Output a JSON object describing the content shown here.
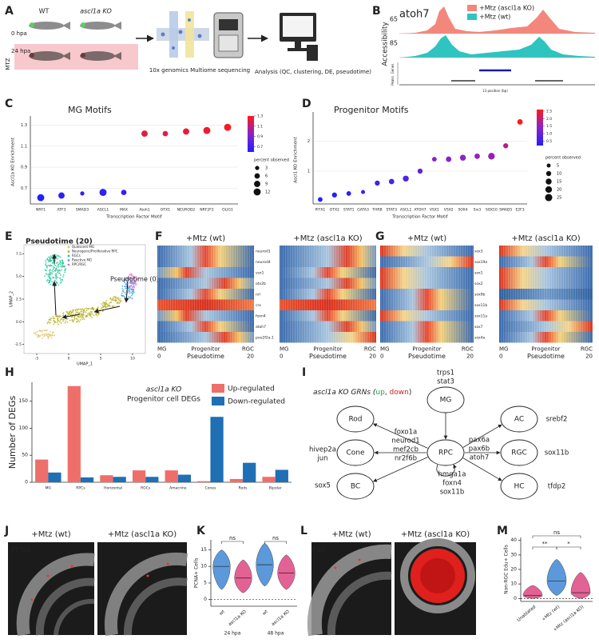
{
  "panel_labels": [
    "A",
    "B",
    "C",
    "D",
    "E",
    "F",
    "G",
    "H",
    "I",
    "J",
    "K",
    "L",
    "M"
  ],
  "panel_a": {
    "groups": [
      "WT",
      "ascl1a KO"
    ],
    "times": [
      "0 hpa",
      "24 hpa"
    ],
    "treatment": "MTZ",
    "steps": [
      "10x genomics Multiome sequencing",
      "Analysis (QC, clustering, DE, pseudotime)"
    ]
  },
  "panel_b": {
    "gene": "atoh7",
    "legend": [
      {
        "name": "+Mtz (ascl1a KO)",
        "color": "#f4877c"
      },
      {
        "name": "+Mtz (wt)",
        "color": "#2ec4c0"
      }
    ],
    "ylabel": "Accessibility",
    "track_max": [
      65,
      85
    ],
    "tracks": [
      "Genes",
      "Peaks"
    ],
    "xlabel": "13 position (bp)"
  },
  "panel_e": {
    "legend": [
      {
        "name": "Quiescent MG",
        "color": "#d9c46a"
      },
      {
        "name": "Neurogenic/Proliferative RPC",
        "color": "#b8b21e"
      },
      {
        "name": "RGCs",
        "color": "#2cc49c"
      },
      {
        "name": "Reactive MG",
        "color": "#4aa8e0"
      },
      {
        "name": "RPC/RGC",
        "color": "#e070d0"
      }
    ],
    "annotations": [
      "Pseudotime (20)",
      "Pseudotime (0)"
    ],
    "xlabel": "UMAP_1",
    "ylabel": "UMAP_2",
    "xlim": [
      -7,
      12
    ],
    "ylim": [
      -3.5,
      8.5
    ],
    "xticks": [
      -5,
      0,
      5,
      10
    ],
    "yticks": [
      7.5,
      {
        "value": 5,
        "label": "5.0"
      },
      2.5,
      {
        "value": 0,
        "label": "0.0"
      },
      -2.5
    ]
  },
  "panel_f": {
    "titles": [
      "+Mtz (wt)",
      "+Mtz (ascl1a KO)"
    ],
    "genes": [
      "neurod1",
      "neurod4",
      "vsx1",
      "otx2b",
      "nrl",
      "crx",
      "foxn4",
      "atoh7",
      "pou2f2a.1"
    ],
    "stages": [
      "MG",
      "Progenitor",
      "RGC"
    ],
    "xticks": [
      0,
      20
    ],
    "xlabel": "Pseudotime"
  },
  "panel_g": {
    "titles": [
      "+Mtz (wt)",
      "+Mtz (ascl1a KO)"
    ],
    "genes": [
      "sox3",
      "sox19a",
      "sox1",
      "sox2",
      "sox9b",
      "sox11b",
      "sox11a",
      "sox7",
      "sox4a"
    ],
    "stages": [
      "MG",
      "Progenitor",
      "RGC"
    ],
    "xticks": [
      0,
      20
    ],
    "xlabel": "Pseudotime"
  },
  "panel_i": {
    "title_parts": [
      {
        "text": "ascl1a KO GRNs (",
        "color": "#222222"
      },
      {
        "text": "up",
        "color": "#2a9d3a"
      },
      {
        "text": ", ",
        "color": "#222222"
      },
      {
        "text": "down",
        "color": "#cc2222"
      },
      {
        "text": ")",
        "color": "#222222"
      }
    ],
    "nodes": [
      "MG",
      "Rod",
      "Cone",
      "BC",
      "RPC",
      "AC",
      "RGC",
      "HC"
    ],
    "gene_groups": [
      {
        "genes": [
          "trps1"
        ],
        "color": "#2a9d3a"
      },
      {
        "genes": [
          "stat3"
        ],
        "color": "#cc2222"
      },
      {
        "genes": [
          "foxo1a",
          "neurod1",
          "mef2cb",
          "nr2f6b"
        ],
        "color": "#cc2222"
      },
      {
        "genes": [
          "hivep2a",
          "jun"
        ],
        "color": "#cc2222"
      },
      {
        "genes": [
          "sox5"
        ],
        "color": "#cc2222"
      },
      {
        "genes": [
          "pax6a",
          "pax6b",
          "atoh7"
        ],
        "color": "#2a9d3a"
      },
      {
        "genes": [
          "hmga1a",
          "foxn4",
          "sox11b"
        ],
        "color": "#2a9d3a"
      },
      {
        "genes": [
          "srebf2"
        ],
        "color": "#2a9d3a"
      },
      {
        "genes": [
          "sox11b"
        ],
        "color": "#2a9d3a"
      },
      {
        "genes": [
          "tfdp2"
        ],
        "color": "#2a9d3a"
      }
    ]
  },
  "panel_j": {
    "titles": [
      "+Mtz (wt)",
      "+Mtz (ascl1a KO)"
    ],
    "stain": "PCNA"
  },
  "panel_l": {
    "titles": [
      "+Mtz (wt)",
      "+Mtz (ascl1a KO)"
    ],
    "stain": "EdU"
  },
  "chart_data": [
    {
      "type": "dot",
      "title": "MG Motifs",
      "xlabel": "Transcription Factor Motif",
      "ylabel": "Ascl1a KO Enrichment",
      "categories": [
        "NRF1",
        "ATF3",
        "SMAD3",
        "ASCL1",
        "MAX",
        "Atoh1",
        "OTX1",
        "NEUROD2",
        "NRF2F2",
        "OLIG1"
      ],
      "values": [
        0.61,
        0.63,
        0.65,
        0.66,
        0.66,
        1.22,
        1.22,
        1.24,
        1.25,
        1.28
      ],
      "sizes": [
        12,
        9,
        3,
        12,
        6,
        9,
        6,
        9,
        12,
        12
      ],
      "ylim": [
        0.55,
        1.35
      ],
      "yticks": [
        0.7,
        0.9,
        1.1,
        1.3
      ],
      "grid": true,
      "colorscale": [
        "#2020ff",
        "#8a22c8",
        "#ff1a1a"
      ],
      "clim": [
        0.6,
        1.3
      ],
      "colorbar_ticks": [
        0.7,
        0.9,
        1.1,
        1.3
      ],
      "size_title": "percent observed",
      "size_legend": [
        3,
        6,
        9,
        12
      ]
    },
    {
      "type": "dot",
      "title": "Progenitor Motifs",
      "xlabel": "Transcription Factor Motif",
      "ylabel": "Ascl1 KO Enrichment",
      "categories": [
        "PITX1",
        "OTX2",
        "STAT1",
        "GATA3",
        "THRB",
        "STAT3",
        "ASCL1",
        "ATOH7",
        "VSX1",
        "VSX2",
        "SOX4",
        "Six3",
        "SOX10",
        "SMAD5",
        "E2F3"
      ],
      "values": [
        0.05,
        0.2,
        0.25,
        0.3,
        0.6,
        0.65,
        0.75,
        1.0,
        1.4,
        1.4,
        1.45,
        1.5,
        1.5,
        1.85,
        2.65
      ],
      "sizes": [
        8,
        10,
        8,
        5,
        10,
        12,
        15,
        10,
        8,
        12,
        15,
        12,
        20,
        10,
        12
      ],
      "ylim": [
        -0.1,
        2.85
      ],
      "yticks": [
        {
          "value": 1,
          "label": "1"
        },
        {
          "value": 2,
          "label": "2"
        }
      ],
      "grid": true,
      "colorscale": [
        "#2020ff",
        "#8a22c8",
        "#ff1a1a"
      ],
      "clim": [
        0.2,
        2.6
      ],
      "colorbar_ticks": [
        0.5,
        {
          "value": 1,
          "label": "1.0"
        },
        1.5,
        {
          "value": 2,
          "label": "2.0"
        },
        2.5
      ],
      "size_title": "percent observed",
      "size_legend": [
        5,
        10,
        15,
        20,
        25
      ]
    },
    {
      "type": "bar",
      "title": "ascl1a KO",
      "subtitle": "Progenitor cell DEGs",
      "ylabel": "Number of DEGs",
      "categories": [
        "MG",
        "RPCs",
        "Horizontal",
        "RGCs",
        "Amacrine",
        "Cones",
        "Rods",
        "Bipolar"
      ],
      "series": [
        {
          "name": "Up-regulated",
          "color": "#ee6f6a",
          "values": [
            42,
            178,
            13,
            22,
            22,
            2,
            6,
            10
          ]
        },
        {
          "name": "Down-regulated",
          "color": "#1f6fb5",
          "values": [
            18,
            9,
            10,
            10,
            14,
            121,
            36,
            23
          ]
        }
      ],
      "ylim": [
        0,
        185
      ],
      "yticks": [
        0,
        50,
        100,
        150
      ],
      "legend": "top-right"
    },
    {
      "type": "violin",
      "ylabel": "PCNA+ Cells",
      "categories": [
        "wt",
        "ascl1a KO",
        "wt",
        "ascl1a KO"
      ],
      "groups": [
        "24 hpa",
        "48 hpa"
      ],
      "values": [
        10,
        6.5,
        10.5,
        8
      ],
      "ranges": [
        [
          3,
          15
        ],
        [
          2,
          12
        ],
        [
          4,
          17
        ],
        [
          3,
          13.5
        ]
      ],
      "colors": [
        "#4a8fd8",
        "#e0528a",
        "#4a8fd8",
        "#e0528a"
      ],
      "ylim": [
        -2,
        18
      ],
      "yticks": [
        0,
        5,
        10,
        15
      ],
      "annotations": [
        "ns",
        "ns"
      ]
    },
    {
      "type": "violin",
      "ylabel": "Non-RGC Edu+ Cells",
      "categories": [
        "Unablated",
        "+Mtz (wt)",
        "+Mtz (ascl1a KO)"
      ],
      "values": [
        2,
        12,
        4
      ],
      "ranges": [
        [
          0,
          9
        ],
        [
          2,
          27
        ],
        [
          0,
          18
        ]
      ],
      "colors": [
        "#e0528a",
        "#4a8fd8",
        "#e0528a"
      ],
      "ylim": [
        -2,
        42
      ],
      "yticks": [
        0,
        10,
        20,
        30,
        40
      ],
      "annotations": [
        "**",
        "*",
        "ns"
      ]
    }
  ]
}
